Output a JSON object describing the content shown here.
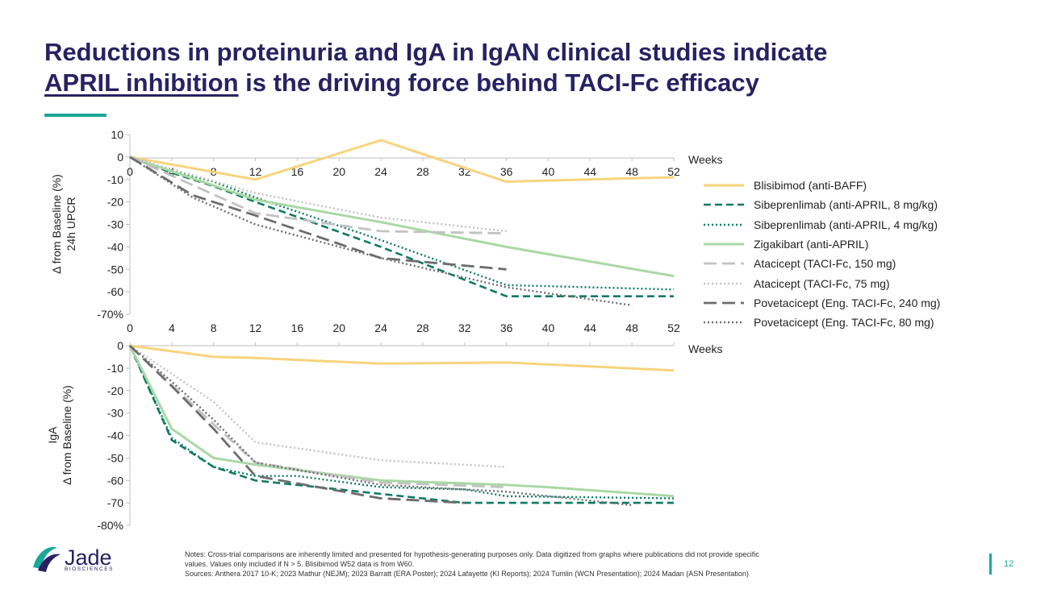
{
  "title": {
    "line1": "Reductions in proteinuria and IgA in IgAN clinical studies indicate",
    "line2_underlined": "APRIL inhibition",
    "line2_rest": " is the driving force behind TACI-Fc efficacy"
  },
  "chart_data": [
    {
      "type": "line",
      "ylabel": [
        "24h UPCR",
        "Δ from Baseline (%)"
      ],
      "xlabel": "Weeks",
      "x_ticks": [
        0,
        4,
        8,
        12,
        16,
        20,
        24,
        28,
        32,
        36,
        40,
        44,
        48,
        52
      ],
      "xlim": [
        0,
        52
      ],
      "y_ticks": [
        10,
        0,
        -10,
        -20,
        -30,
        -40,
        -50,
        -60,
        -70
      ],
      "y_tick_labels": [
        "10",
        "0",
        "-10",
        "-20",
        "-30",
        "-40",
        "-50",
        "-60",
        "-70%"
      ],
      "ylim": [
        -70,
        10
      ],
      "series": [
        {
          "name": "Blisibimod (anti-BAFF)",
          "color": "#f7d37c",
          "dash": "solid",
          "points": [
            [
              0,
              0
            ],
            [
              12,
              -10
            ],
            [
              24,
              7.5
            ],
            [
              36,
              -11
            ],
            [
              52,
              -9
            ]
          ]
        },
        {
          "name": "Sibeprenlimab (anti-APRIL, 8 mg/kg)",
          "color": "#0d7b63",
          "dash": "dashed",
          "points": [
            [
              0,
              0
            ],
            [
              4,
              -7
            ],
            [
              8,
              -13
            ],
            [
              12,
              -20
            ],
            [
              24,
              -40
            ],
            [
              36,
              -62
            ],
            [
              52,
              -62
            ]
          ]
        },
        {
          "name": "Sibeprenlimab (anti-APRIL, 4 mg/kg)",
          "color": "#0d7b63",
          "dash": "dotted",
          "points": [
            [
              0,
              0
            ],
            [
              4,
              -6
            ],
            [
              8,
              -11
            ],
            [
              12,
              -18
            ],
            [
              24,
              -37
            ],
            [
              36,
              -57
            ],
            [
              52,
              -59
            ]
          ]
        },
        {
          "name": "Zigakibart (anti-APRIL)",
          "color": "#a9d8a4",
          "dash": "solid",
          "points": [
            [
              0,
              0
            ],
            [
              12,
              -19
            ],
            [
              24,
              -29
            ],
            [
              36,
              -40
            ],
            [
              52,
              -53
            ]
          ]
        },
        {
          "name": "Atacicept (TACI-Fc, 150 mg)",
          "color": "#c2c2c2",
          "dash": "longdash",
          "points": [
            [
              0,
              0
            ],
            [
              12,
              -25
            ],
            [
              24,
              -33
            ],
            [
              36,
              -34
            ]
          ]
        },
        {
          "name": "Atacicept (TACI-Fc, 75 mg)",
          "color": "#c2c2c2",
          "dash": "dotted",
          "points": [
            [
              0,
              0
            ],
            [
              12,
              -16
            ],
            [
              24,
              -27
            ],
            [
              36,
              -33
            ]
          ]
        },
        {
          "name": "Povetacicept (Eng. TACI-Fc, 240 mg)",
          "color": "#6d6d6d",
          "dash": "longdash",
          "points": [
            [
              0,
              0
            ],
            [
              6,
              -17
            ],
            [
              12,
              -26
            ],
            [
              24,
              -45
            ],
            [
              36,
              -50
            ]
          ]
        },
        {
          "name": "Povetacicept (Eng. TACI-Fc, 80 mg)",
          "color": "#6d6d6d",
          "dash": "dotted",
          "points": [
            [
              0,
              0
            ],
            [
              6,
              -18
            ],
            [
              12,
              -30
            ],
            [
              24,
              -45
            ],
            [
              36,
              -58
            ],
            [
              48,
              -66
            ]
          ]
        }
      ]
    },
    {
      "type": "line",
      "ylabel": [
        "IgA",
        "Δ from Baseline (%)"
      ],
      "xlabel": "Weeks",
      "x_ticks": [
        0,
        4,
        8,
        12,
        16,
        20,
        24,
        28,
        32,
        36,
        40,
        44,
        48,
        52
      ],
      "xlim": [
        0,
        52
      ],
      "y_ticks": [
        0,
        -10,
        -20,
        -30,
        -40,
        -50,
        -60,
        -70,
        -80
      ],
      "y_tick_labels": [
        "0",
        "-10",
        "-20",
        "-30",
        "-40",
        "-50",
        "-60",
        "-70",
        "-80%"
      ],
      "ylim": [
        -80,
        0
      ],
      "series": [
        {
          "name": "Blisibimod (anti-BAFF)",
          "color": "#f7d37c",
          "dash": "solid",
          "points": [
            [
              0,
              0
            ],
            [
              8,
              -5
            ],
            [
              12,
              -5.5
            ],
            [
              24,
              -8
            ],
            [
              36,
              -7.5
            ],
            [
              52,
              -11
            ]
          ]
        },
        {
          "name": "Sibeprenlimab (anti-APRIL, 8 mg/kg)",
          "color": "#0d7b63",
          "dash": "dashed",
          "points": [
            [
              0,
              0
            ],
            [
              4,
              -42
            ],
            [
              8,
              -54
            ],
            [
              12,
              -60
            ],
            [
              24,
              -66
            ],
            [
              28,
              -68
            ],
            [
              32,
              -70
            ],
            [
              36,
              -70
            ],
            [
              52,
              -70
            ]
          ]
        },
        {
          "name": "Sibeprenlimab (anti-APRIL, 4 mg/kg)",
          "color": "#0d7b63",
          "dash": "dotted",
          "points": [
            [
              0,
              0
            ],
            [
              4,
              -41
            ],
            [
              8,
              -54
            ],
            [
              12,
              -58
            ],
            [
              16,
              -58
            ],
            [
              24,
              -63
            ],
            [
              32,
              -64
            ],
            [
              36,
              -67
            ],
            [
              52,
              -68
            ]
          ]
        },
        {
          "name": "Zigakibart (anti-APRIL)",
          "color": "#a9d8a4",
          "dash": "solid",
          "points": [
            [
              0,
              0
            ],
            [
              4,
              -37
            ],
            [
              8,
              -50
            ],
            [
              12,
              -53
            ],
            [
              24,
              -60
            ],
            [
              36,
              -62
            ],
            [
              40,
              -63
            ],
            [
              52,
              -67
            ]
          ]
        },
        {
          "name": "Atacicept (TACI-Fc, 150 mg)",
          "color": "#c2c2c2",
          "dash": "longdash",
          "points": [
            [
              0,
              0
            ],
            [
              8,
              -35
            ],
            [
              12,
              -52
            ],
            [
              24,
              -61
            ],
            [
              36,
              -63
            ]
          ]
        },
        {
          "name": "Atacicept (TACI-Fc, 75 mg)",
          "color": "#c2c2c2",
          "dash": "dotted",
          "points": [
            [
              0,
              0
            ],
            [
              8,
              -25
            ],
            [
              12,
              -43
            ],
            [
              24,
              -51
            ],
            [
              36,
              -54
            ]
          ]
        },
        {
          "name": "Povetacicept (Eng. TACI-Fc, 240 mg)",
          "color": "#6d6d6d",
          "dash": "longdash",
          "points": [
            [
              0,
              0
            ],
            [
              4,
              -18
            ],
            [
              8,
              -37
            ],
            [
              12,
              -58
            ],
            [
              24,
              -68
            ],
            [
              32,
              -70
            ]
          ]
        },
        {
          "name": "Povetacicept (Eng. TACI-Fc, 80 mg)",
          "color": "#6d6d6d",
          "dash": "dotted",
          "points": [
            [
              0,
              0
            ],
            [
              4,
              -16
            ],
            [
              8,
              -33
            ],
            [
              12,
              -52
            ],
            [
              24,
              -62
            ],
            [
              36,
              -65
            ],
            [
              48,
              -71
            ]
          ]
        }
      ]
    }
  ],
  "notes": {
    "line1": "Notes: Cross-trial comparisons are inherently limited and presented for hypothesis-generating purposes only. Data digitized from graphs where publications did not provide specific",
    "line2": "values. Values only included if N > 5. Blisibimod W52 data is from W60.",
    "line3": "Sources: Anthera 2017 10-K; 2023 Mathur (NEJM); 2023 Barratt (ERA Poster); 2024 Lafayette (KI Reports); 2024 Tumlin (WCN Presentation); 2024 Madan (ASN Presentation)"
  },
  "logo": {
    "name": "Jade",
    "sub": "BIOSCIENCES"
  },
  "page_number": "12"
}
